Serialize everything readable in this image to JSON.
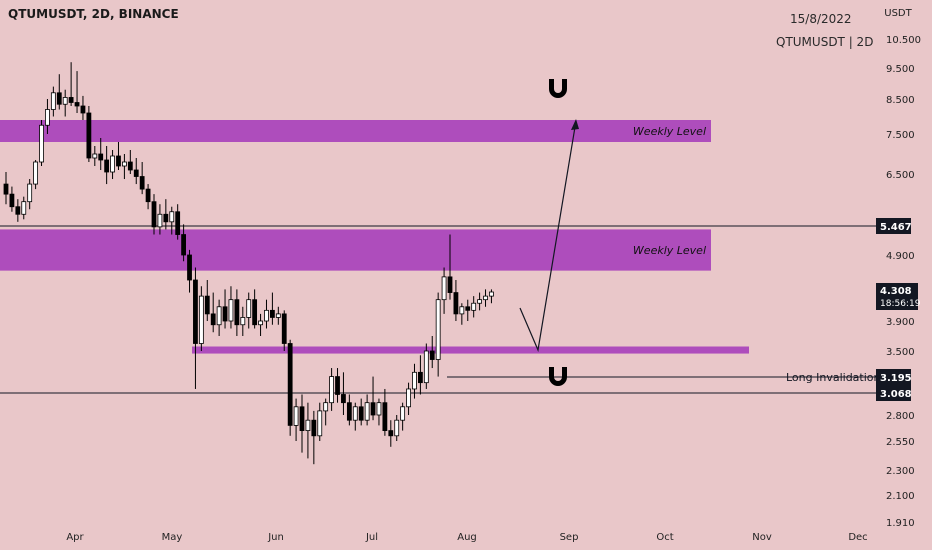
{
  "header": {
    "symbol_title": "QTUMUSDT, 2D, BINANCE",
    "date": "15/8/2022",
    "symbol_interval": "QTUMUSDT | 2D"
  },
  "chart_data": {
    "type": "candlestick",
    "ylabel": "USDT",
    "y_ticks": [
      10.5,
      9.5,
      8.5,
      7.5,
      6.5,
      5.467,
      4.9,
      4.308,
      3.9,
      3.5,
      3.195,
      3.068,
      2.8,
      2.55,
      2.3,
      2.1,
      1.91
    ],
    "y_tick_labels": [
      "10.500",
      "9.500",
      "8.500",
      "7.500",
      "6.500",
      "5.467",
      "4.900",
      "4.308",
      "3.900",
      "3.500",
      "3.195",
      "3.068",
      "2.800",
      "2.550",
      "2.300",
      "2.100",
      "1.910"
    ],
    "x_tick_labels": [
      "Apr",
      "May",
      "Jun",
      "Jul",
      "Aug",
      "Sep",
      "Oct",
      "Nov",
      "Dec"
    ],
    "last_price": "4.308",
    "countdown": "18:56:19",
    "horizontal_lines": [
      {
        "price": 5.467,
        "label": "5.467",
        "color": "#131722"
      },
      {
        "price": 3.068,
        "label": "3.068",
        "color": "#131722"
      }
    ],
    "zones": [
      {
        "label": "Weekly Level",
        "low": 7.3,
        "high": 7.9,
        "color": "#ab47bc"
      },
      {
        "label": "Weekly Level",
        "low": 4.65,
        "high": 5.4,
        "color": "#ab47bc"
      },
      {
        "label": "",
        "low": 3.47,
        "high": 3.56,
        "color": "#ab47bc"
      }
    ],
    "long_invalidation": {
      "label": "Long Invalidation",
      "price": 3.195
    },
    "candles": [
      {
        "o": 6.3,
        "h": 6.55,
        "l": 5.9,
        "c": 6.1
      },
      {
        "o": 6.1,
        "h": 6.25,
        "l": 5.75,
        "c": 5.85
      },
      {
        "o": 5.85,
        "h": 6.0,
        "l": 5.55,
        "c": 5.7
      },
      {
        "o": 5.7,
        "h": 6.05,
        "l": 5.6,
        "c": 5.95
      },
      {
        "o": 5.95,
        "h": 6.4,
        "l": 5.8,
        "c": 6.3
      },
      {
        "o": 6.3,
        "h": 6.85,
        "l": 6.2,
        "c": 6.8
      },
      {
        "o": 6.8,
        "h": 7.9,
        "l": 6.7,
        "c": 7.75
      },
      {
        "o": 7.75,
        "h": 8.5,
        "l": 7.5,
        "c": 8.2
      },
      {
        "o": 8.2,
        "h": 8.9,
        "l": 8.0,
        "c": 8.7
      },
      {
        "o": 8.7,
        "h": 9.3,
        "l": 8.2,
        "c": 8.35
      },
      {
        "o": 8.35,
        "h": 8.8,
        "l": 8.0,
        "c": 8.55
      },
      {
        "o": 8.55,
        "h": 9.7,
        "l": 8.3,
        "c": 8.4
      },
      {
        "o": 8.4,
        "h": 9.4,
        "l": 8.1,
        "c": 8.3
      },
      {
        "o": 8.3,
        "h": 8.6,
        "l": 7.9,
        "c": 8.1
      },
      {
        "o": 8.1,
        "h": 8.3,
        "l": 6.8,
        "c": 6.9
      },
      {
        "o": 6.9,
        "h": 7.2,
        "l": 6.7,
        "c": 7.0
      },
      {
        "o": 7.0,
        "h": 7.4,
        "l": 6.6,
        "c": 6.85
      },
      {
        "o": 6.85,
        "h": 7.2,
        "l": 6.3,
        "c": 6.55
      },
      {
        "o": 6.55,
        "h": 7.1,
        "l": 6.4,
        "c": 6.95
      },
      {
        "o": 6.95,
        "h": 7.3,
        "l": 6.6,
        "c": 6.7
      },
      {
        "o": 6.7,
        "h": 7.0,
        "l": 6.4,
        "c": 6.8
      },
      {
        "o": 6.8,
        "h": 7.1,
        "l": 6.5,
        "c": 6.6
      },
      {
        "o": 6.6,
        "h": 6.9,
        "l": 6.3,
        "c": 6.45
      },
      {
        "o": 6.45,
        "h": 6.8,
        "l": 6.1,
        "c": 6.2
      },
      {
        "o": 6.2,
        "h": 6.3,
        "l": 5.8,
        "c": 5.95
      },
      {
        "o": 5.95,
        "h": 6.1,
        "l": 5.3,
        "c": 5.45
      },
      {
        "o": 5.45,
        "h": 5.9,
        "l": 5.3,
        "c": 5.7
      },
      {
        "o": 5.7,
        "h": 6.0,
        "l": 5.4,
        "c": 5.55
      },
      {
        "o": 5.55,
        "h": 5.85,
        "l": 5.3,
        "c": 5.75
      },
      {
        "o": 5.75,
        "h": 5.9,
        "l": 5.2,
        "c": 5.3
      },
      {
        "o": 5.3,
        "h": 5.5,
        "l": 4.8,
        "c": 4.9
      },
      {
        "o": 4.9,
        "h": 5.0,
        "l": 4.3,
        "c": 4.5
      },
      {
        "o": 4.5,
        "h": 4.7,
        "l": 3.1,
        "c": 3.6
      },
      {
        "o": 3.6,
        "h": 4.4,
        "l": 3.5,
        "c": 4.25
      },
      {
        "o": 4.25,
        "h": 4.5,
        "l": 3.9,
        "c": 4.0
      },
      {
        "o": 4.0,
        "h": 4.3,
        "l": 3.75,
        "c": 3.85
      },
      {
        "o": 3.85,
        "h": 4.2,
        "l": 3.7,
        "c": 4.1
      },
      {
        "o": 4.1,
        "h": 4.35,
        "l": 3.8,
        "c": 3.9
      },
      {
        "o": 3.9,
        "h": 4.4,
        "l": 3.8,
        "c": 4.2
      },
      {
        "o": 4.2,
        "h": 4.35,
        "l": 3.7,
        "c": 3.85
      },
      {
        "o": 3.85,
        "h": 4.1,
        "l": 3.7,
        "c": 3.95
      },
      {
        "o": 3.95,
        "h": 4.3,
        "l": 3.8,
        "c": 4.2
      },
      {
        "o": 4.2,
        "h": 4.35,
        "l": 3.8,
        "c": 3.85
      },
      {
        "o": 3.85,
        "h": 4.0,
        "l": 3.7,
        "c": 3.9
      },
      {
        "o": 3.9,
        "h": 4.2,
        "l": 3.8,
        "c": 4.05
      },
      {
        "o": 4.05,
        "h": 4.3,
        "l": 3.85,
        "c": 3.95
      },
      {
        "o": 3.95,
        "h": 4.1,
        "l": 3.85,
        "c": 4.0
      },
      {
        "o": 4.0,
        "h": 4.05,
        "l": 3.5,
        "c": 3.6
      },
      {
        "o": 3.6,
        "h": 3.65,
        "l": 2.6,
        "c": 2.7
      },
      {
        "o": 2.7,
        "h": 3.0,
        "l": 2.55,
        "c": 2.9
      },
      {
        "o": 2.9,
        "h": 3.05,
        "l": 2.45,
        "c": 2.65
      },
      {
        "o": 2.65,
        "h": 2.95,
        "l": 2.4,
        "c": 2.75
      },
      {
        "o": 2.75,
        "h": 2.85,
        "l": 2.35,
        "c": 2.6
      },
      {
        "o": 2.6,
        "h": 2.95,
        "l": 2.55,
        "c": 2.85
      },
      {
        "o": 2.85,
        "h": 3.0,
        "l": 2.7,
        "c": 2.95
      },
      {
        "o": 2.95,
        "h": 3.3,
        "l": 2.85,
        "c": 3.2
      },
      {
        "o": 3.2,
        "h": 3.3,
        "l": 2.95,
        "c": 3.05
      },
      {
        "o": 3.05,
        "h": 3.25,
        "l": 2.8,
        "c": 2.95
      },
      {
        "o": 2.95,
        "h": 3.05,
        "l": 2.7,
        "c": 2.75
      },
      {
        "o": 2.75,
        "h": 2.95,
        "l": 2.65,
        "c": 2.9
      },
      {
        "o": 2.9,
        "h": 3.0,
        "l": 2.7,
        "c": 2.75
      },
      {
        "o": 2.75,
        "h": 3.05,
        "l": 2.7,
        "c": 2.95
      },
      {
        "o": 2.95,
        "h": 3.2,
        "l": 2.75,
        "c": 2.8
      },
      {
        "o": 2.8,
        "h": 3.0,
        "l": 2.7,
        "c": 2.95
      },
      {
        "o": 2.95,
        "h": 3.1,
        "l": 2.6,
        "c": 2.65
      },
      {
        "o": 2.65,
        "h": 2.75,
        "l": 2.5,
        "c": 2.6
      },
      {
        "o": 2.6,
        "h": 2.8,
        "l": 2.55,
        "c": 2.75
      },
      {
        "o": 2.75,
        "h": 2.95,
        "l": 2.65,
        "c": 2.9
      },
      {
        "o": 2.9,
        "h": 3.15,
        "l": 2.8,
        "c": 3.1
      },
      {
        "o": 3.1,
        "h": 3.35,
        "l": 3.0,
        "c": 3.25
      },
      {
        "o": 3.25,
        "h": 3.45,
        "l": 3.05,
        "c": 3.15
      },
      {
        "o": 3.15,
        "h": 3.6,
        "l": 3.1,
        "c": 3.5
      },
      {
        "o": 3.5,
        "h": 3.7,
        "l": 3.3,
        "c": 3.4
      },
      {
        "o": 3.4,
        "h": 4.3,
        "l": 3.2,
        "c": 4.2
      },
      {
        "o": 4.2,
        "h": 4.7,
        "l": 4.0,
        "c": 4.55
      },
      {
        "o": 4.55,
        "h": 5.3,
        "l": 4.2,
        "c": 4.3
      },
      {
        "o": 4.3,
        "h": 4.5,
        "l": 3.9,
        "c": 4.0
      },
      {
        "o": 4.0,
        "h": 4.15,
        "l": 3.85,
        "c": 4.1
      },
      {
        "o": 4.1,
        "h": 4.2,
        "l": 3.9,
        "c": 4.05
      },
      {
        "o": 4.05,
        "h": 4.25,
        "l": 3.95,
        "c": 4.15
      },
      {
        "o": 4.15,
        "h": 4.3,
        "l": 4.05,
        "c": 4.2
      },
      {
        "o": 4.2,
        "h": 4.35,
        "l": 4.1,
        "c": 4.25
      },
      {
        "o": 4.25,
        "h": 4.35,
        "l": 4.15,
        "c": 4.308
      }
    ]
  }
}
